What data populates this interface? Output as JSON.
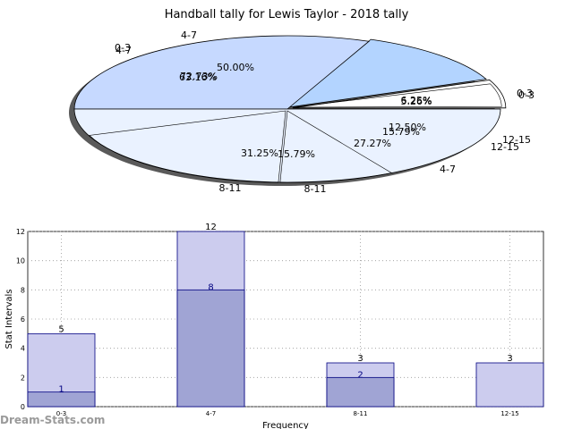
{
  "title": "Handball tally for Lewis Taylor - 2018 tally",
  "watermark": "Dream-Stats.com",
  "chart_data": [
    {
      "type": "pie",
      "title": "Handball tally for Lewis Taylor - 2018 tally",
      "rings": [
        {
          "name": "outer",
          "slices": [
            {
              "label": "0-3",
              "value": 6.25,
              "pct_text": "6.25%",
              "color": "#ffffff"
            },
            {
              "label": "12-15",
              "value": 12.5,
              "pct_text": "12.50%",
              "color": "#b3d4ff"
            },
            {
              "label": "8-11",
              "value": 31.25,
              "pct_text": "31.25%",
              "color": "#c6d9ff"
            },
            {
              "label": "4-7",
              "value": 50.0,
              "pct_text": "50.00%",
              "color": "#eaf2ff"
            }
          ]
        },
        {
          "name": "inner",
          "slices": [
            {
              "label": "0-3",
              "value": 5.26,
              "pct_text": "5.26%"
            },
            {
              "label": "12-15",
              "value": 15.79,
              "pct_text": "15.79%"
            },
            {
              "label": "4-7",
              "value": 27.27,
              "pct_text": "27.27%"
            },
            {
              "label": "8-11",
              "value": 15.79,
              "pct_text": "15.79%"
            },
            {
              "label": "4-7",
              "value": 72.73,
              "pct_text": "72.73%"
            },
            {
              "label": "0-3",
              "value": 63.16,
              "pct_text": "63.16%"
            }
          ]
        }
      ]
    },
    {
      "type": "bar",
      "categories": [
        "0-3",
        "4-7",
        "8-11",
        "12-15"
      ],
      "series": [
        {
          "values": [
            5,
            12,
            3,
            3
          ],
          "color": "#ccccee"
        },
        {
          "values": [
            1,
            8,
            2,
            0
          ],
          "color": "#a0a4d4"
        }
      ],
      "xlabel": "Frequency",
      "ylabel": "Stat Intervals",
      "ylim": [
        0,
        12
      ],
      "yticks": [
        0,
        2,
        4,
        6,
        8,
        10,
        12
      ],
      "grid": true
    }
  ]
}
